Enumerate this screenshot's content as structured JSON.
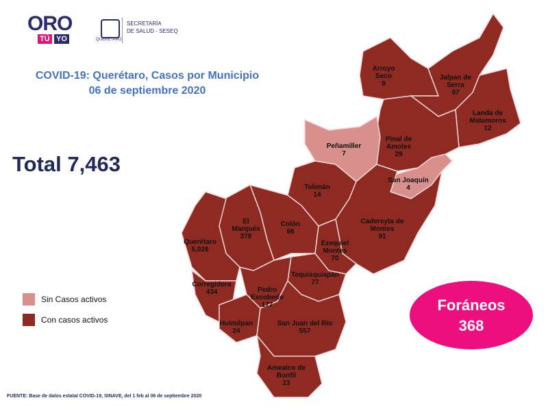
{
  "header": {
    "logo": {
      "main": "ORO",
      "tu": "TÚ",
      "yo": "YO"
    },
    "agency": {
      "line1": "SECRETARÍA",
      "line2": "DE SALUD - SESEQ",
      "state": "QUERÉTARO"
    }
  },
  "title": {
    "line1": "COVID-19: Querétaro, Casos por Municipio",
    "line2": "06 de septiembre 2020"
  },
  "total": "Total 7,463",
  "legend": [
    {
      "label": "Sin Casos activos",
      "color": "#d98f8b"
    },
    {
      "label": "Con casos activos",
      "color": "#8e2a22"
    }
  ],
  "municipalities": [
    {
      "name": "Arroyo Seco",
      "count": "9",
      "color": "#8e2a22"
    },
    {
      "name": "Jalpan de Serra",
      "count": "97",
      "color": "#8e2a22"
    },
    {
      "name": "Landa de Matamoros",
      "count": "12",
      "color": "#8e2a22"
    },
    {
      "name": "Pinal de Amoles",
      "count": "29",
      "color": "#8e2a22"
    },
    {
      "name": "Peñamiller",
      "count": "7",
      "color": "#d98f8b"
    },
    {
      "name": "San Joaquín",
      "count": "4",
      "color": "#d98f8b"
    },
    {
      "name": "Tolimán",
      "count": "14",
      "color": "#8e2a22"
    },
    {
      "name": "Cadereyta de Montes",
      "count": "91",
      "color": "#8e2a22"
    },
    {
      "name": "Colón",
      "count": "66",
      "color": "#8e2a22"
    },
    {
      "name": "El Marqués",
      "count": "378",
      "color": "#8e2a22"
    },
    {
      "name": "Querétaro",
      "count": "5,026",
      "color": "#8e2a22"
    },
    {
      "name": "Corregidora",
      "count": "434",
      "color": "#8e2a22"
    },
    {
      "name": "Ezequiel Montes",
      "count": "70",
      "color": "#8e2a22"
    },
    {
      "name": "Tequisquiapan",
      "count": "77",
      "color": "#8e2a22"
    },
    {
      "name": "Pedro Escobedo",
      "count": "177",
      "color": "#8e2a22"
    },
    {
      "name": "Huimilpan",
      "count": "24",
      "color": "#8e2a22"
    },
    {
      "name": "San Juan del Río",
      "count": "557",
      "color": "#8e2a22"
    },
    {
      "name": "Amealco de Bonfil",
      "count": "23",
      "color": "#8e2a22"
    }
  ],
  "foraneos": {
    "label": "Foráneos",
    "count": "368"
  },
  "source": "FUENTE: Base de datos estatal COVID-19, SINAVE, del 1 feb al 06 de septiembre 2020"
}
